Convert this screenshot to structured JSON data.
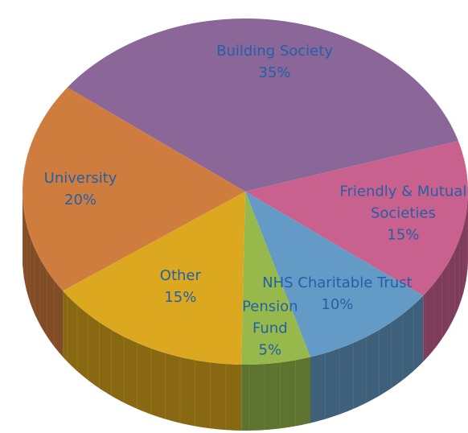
{
  "chart_data": {
    "type": "pie",
    "categories": [
      "Building Society",
      "Friendly & Mutual Societies",
      "NHS Charitable Trust",
      "Pension Fund",
      "Other",
      "University"
    ],
    "values": [
      35,
      15,
      10,
      5,
      15,
      20
    ],
    "value_labels": [
      "35%",
      "15%",
      "10%",
      "5%",
      "15%",
      "20%"
    ],
    "colors": [
      "#8b6699",
      "#c9618f",
      "#649bc6",
      "#97b94c",
      "#dba81f",
      "#cf7c3f"
    ]
  }
}
